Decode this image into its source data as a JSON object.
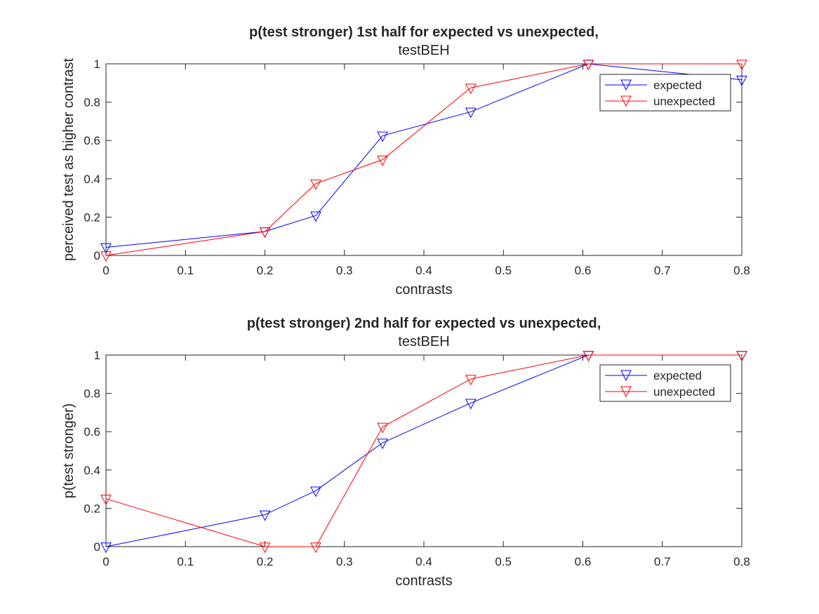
{
  "chart_data": [
    {
      "type": "line",
      "title": "p(test stronger) 1st half for expected vs unexpected,",
      "subtitle": "testBEH",
      "xlabel": "contrasts",
      "ylabel": "perceived test as higher contrast",
      "xlim": [
        0,
        0.8
      ],
      "ylim": [
        0,
        1
      ],
      "xticks": [
        0,
        0.1,
        0.2,
        0.3,
        0.4,
        0.5,
        0.6,
        0.7,
        0.8
      ],
      "xtick_labels": [
        "0",
        "0.1",
        "0.2",
        "0.3",
        "0.4",
        "0.5",
        "0.6",
        "0.7",
        "0.8"
      ],
      "yticks": [
        0,
        0.2,
        0.4,
        0.6,
        0.8,
        1
      ],
      "ytick_labels": [
        "0",
        "0.2",
        "0.4",
        "0.6",
        "0.8",
        "1"
      ],
      "grid": false,
      "legend_position": "top-right",
      "series": [
        {
          "name": "expected",
          "color": "#0000ff",
          "marker": "down-triangle",
          "x": [
            0,
            0.2,
            0.264,
            0.348,
            0.459,
            0.607,
            0.8
          ],
          "y": [
            0.042,
            0.125,
            0.208,
            0.625,
            0.75,
            1.0,
            0.917
          ]
        },
        {
          "name": "unexpected",
          "color": "#ff0000",
          "marker": "down-triangle",
          "x": [
            0,
            0.2,
            0.264,
            0.348,
            0.459,
            0.607,
            0.8
          ],
          "y": [
            0.0,
            0.125,
            0.375,
            0.5,
            0.875,
            1.0,
            1.0
          ]
        }
      ]
    },
    {
      "type": "line",
      "title": "p(test stronger) 2nd half for expected vs unexpected,",
      "subtitle": "testBEH",
      "xlabel": "contrasts",
      "ylabel": "p(test stronger)",
      "xlim": [
        0,
        0.8
      ],
      "ylim": [
        0,
        1
      ],
      "xticks": [
        0,
        0.1,
        0.2,
        0.3,
        0.4,
        0.5,
        0.6,
        0.7,
        0.8
      ],
      "xtick_labels": [
        "0",
        "0.1",
        "0.2",
        "0.3",
        "0.4",
        "0.5",
        "0.6",
        "0.7",
        "0.8"
      ],
      "yticks": [
        0,
        0.2,
        0.4,
        0.6,
        0.8,
        1
      ],
      "ytick_labels": [
        "0",
        "0.2",
        "0.4",
        "0.6",
        "0.8",
        "1"
      ],
      "grid": false,
      "legend_position": "top-right",
      "series": [
        {
          "name": "expected",
          "color": "#0000ff",
          "marker": "down-triangle",
          "x": [
            0,
            0.2,
            0.264,
            0.348,
            0.459,
            0.607,
            0.8
          ],
          "y": [
            0.0,
            0.167,
            0.292,
            0.542,
            0.75,
            1.0,
            1.0
          ]
        },
        {
          "name": "unexpected",
          "color": "#ff0000",
          "marker": "down-triangle",
          "x": [
            0,
            0.2,
            0.264,
            0.348,
            0.459,
            0.607,
            0.8
          ],
          "y": [
            0.25,
            0.0,
            0.0,
            0.625,
            0.875,
            1.0,
            1.0
          ]
        }
      ]
    }
  ]
}
